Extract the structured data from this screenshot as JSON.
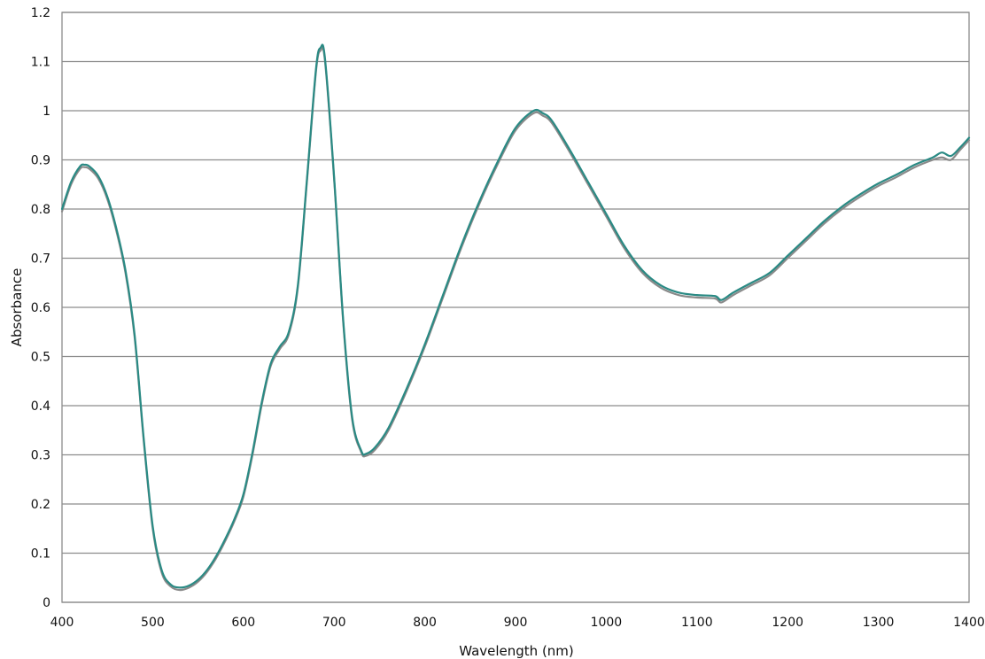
{
  "chart_data": {
    "type": "line",
    "title": "",
    "xlabel": "Wavelength (nm)",
    "ylabel": "Absorbance",
    "xlim": [
      400,
      1400
    ],
    "ylim": [
      0,
      1.2
    ],
    "grid": true,
    "legend": "none",
    "x_ticks": [
      "400",
      "500",
      "600",
      "700",
      "800",
      "900",
      "1000",
      "1100",
      "1200",
      "1300",
      "1400"
    ],
    "y_ticks": [
      "0",
      "0.1",
      "0.2",
      "0.3",
      "0.4",
      "0.5",
      "0.6",
      "0.7",
      "0.8",
      "0.9",
      "1",
      "1.1",
      "1.2"
    ],
    "series": [
      {
        "color": "#8a8a8a",
        "points": [
          [
            400,
            0.795
          ],
          [
            410,
            0.85
          ],
          [
            420,
            0.882
          ],
          [
            425,
            0.885
          ],
          [
            430,
            0.882
          ],
          [
            440,
            0.862
          ],
          [
            450,
            0.82
          ],
          [
            460,
            0.755
          ],
          [
            470,
            0.67
          ],
          [
            480,
            0.54
          ],
          [
            490,
            0.33
          ],
          [
            500,
            0.15
          ],
          [
            510,
            0.06
          ],
          [
            520,
            0.032
          ],
          [
            530,
            0.025
          ],
          [
            540,
            0.03
          ],
          [
            550,
            0.042
          ],
          [
            560,
            0.062
          ],
          [
            570,
            0.09
          ],
          [
            580,
            0.125
          ],
          [
            590,
            0.165
          ],
          [
            600,
            0.215
          ],
          [
            610,
            0.3
          ],
          [
            620,
            0.4
          ],
          [
            630,
            0.48
          ],
          [
            640,
            0.515
          ],
          [
            650,
            0.545
          ],
          [
            660,
            0.64
          ],
          [
            670,
            0.855
          ],
          [
            680,
            1.08
          ],
          [
            685,
            1.122
          ],
          [
            690,
            1.1
          ],
          [
            700,
            0.86
          ],
          [
            710,
            0.57
          ],
          [
            720,
            0.37
          ],
          [
            730,
            0.305
          ],
          [
            735,
            0.298
          ],
          [
            745,
            0.31
          ],
          [
            760,
            0.35
          ],
          [
            780,
            0.43
          ],
          [
            800,
            0.52
          ],
          [
            820,
            0.62
          ],
          [
            840,
            0.72
          ],
          [
            860,
            0.81
          ],
          [
            880,
            0.89
          ],
          [
            900,
            0.96
          ],
          [
            920,
            0.995
          ],
          [
            930,
            0.99
          ],
          [
            940,
            0.975
          ],
          [
            960,
            0.915
          ],
          [
            980,
            0.85
          ],
          [
            1000,
            0.785
          ],
          [
            1020,
            0.72
          ],
          [
            1040,
            0.67
          ],
          [
            1060,
            0.64
          ],
          [
            1080,
            0.625
          ],
          [
            1100,
            0.62
          ],
          [
            1120,
            0.618
          ],
          [
            1127,
            0.61
          ],
          [
            1140,
            0.625
          ],
          [
            1160,
            0.645
          ],
          [
            1180,
            0.665
          ],
          [
            1200,
            0.7
          ],
          [
            1220,
            0.735
          ],
          [
            1240,
            0.77
          ],
          [
            1260,
            0.8
          ],
          [
            1280,
            0.825
          ],
          [
            1300,
            0.847
          ],
          [
            1320,
            0.865
          ],
          [
            1340,
            0.885
          ],
          [
            1360,
            0.9
          ],
          [
            1370,
            0.905
          ],
          [
            1380,
            0.9
          ],
          [
            1390,
            0.92
          ],
          [
            1400,
            0.94
          ]
        ]
      },
      {
        "color": "#2a8a84",
        "points": [
          [
            400,
            0.8
          ],
          [
            410,
            0.855
          ],
          [
            420,
            0.887
          ],
          [
            425,
            0.89
          ],
          [
            430,
            0.887
          ],
          [
            440,
            0.867
          ],
          [
            450,
            0.825
          ],
          [
            460,
            0.76
          ],
          [
            470,
            0.675
          ],
          [
            480,
            0.545
          ],
          [
            490,
            0.335
          ],
          [
            500,
            0.155
          ],
          [
            510,
            0.065
          ],
          [
            520,
            0.036
          ],
          [
            530,
            0.03
          ],
          [
            540,
            0.034
          ],
          [
            550,
            0.046
          ],
          [
            560,
            0.066
          ],
          [
            570,
            0.094
          ],
          [
            580,
            0.129
          ],
          [
            590,
            0.169
          ],
          [
            600,
            0.22
          ],
          [
            610,
            0.305
          ],
          [
            620,
            0.405
          ],
          [
            630,
            0.485
          ],
          [
            640,
            0.52
          ],
          [
            650,
            0.55
          ],
          [
            660,
            0.645
          ],
          [
            670,
            0.86
          ],
          [
            680,
            1.085
          ],
          [
            685,
            1.128
          ],
          [
            690,
            1.105
          ],
          [
            700,
            0.865
          ],
          [
            710,
            0.575
          ],
          [
            720,
            0.375
          ],
          [
            730,
            0.308
          ],
          [
            735,
            0.302
          ],
          [
            745,
            0.315
          ],
          [
            760,
            0.355
          ],
          [
            780,
            0.435
          ],
          [
            800,
            0.525
          ],
          [
            820,
            0.625
          ],
          [
            840,
            0.725
          ],
          [
            860,
            0.815
          ],
          [
            880,
            0.895
          ],
          [
            900,
            0.965
          ],
          [
            920,
            1.0
          ],
          [
            930,
            0.995
          ],
          [
            940,
            0.98
          ],
          [
            960,
            0.92
          ],
          [
            980,
            0.855
          ],
          [
            1000,
            0.79
          ],
          [
            1020,
            0.725
          ],
          [
            1040,
            0.675
          ],
          [
            1060,
            0.645
          ],
          [
            1080,
            0.63
          ],
          [
            1100,
            0.625
          ],
          [
            1120,
            0.623
          ],
          [
            1127,
            0.615
          ],
          [
            1140,
            0.63
          ],
          [
            1160,
            0.65
          ],
          [
            1180,
            0.67
          ],
          [
            1200,
            0.705
          ],
          [
            1220,
            0.74
          ],
          [
            1240,
            0.775
          ],
          [
            1260,
            0.805
          ],
          [
            1280,
            0.83
          ],
          [
            1300,
            0.852
          ],
          [
            1320,
            0.87
          ],
          [
            1340,
            0.89
          ],
          [
            1360,
            0.905
          ],
          [
            1370,
            0.915
          ],
          [
            1380,
            0.908
          ],
          [
            1390,
            0.925
          ],
          [
            1400,
            0.945
          ]
        ]
      }
    ]
  }
}
